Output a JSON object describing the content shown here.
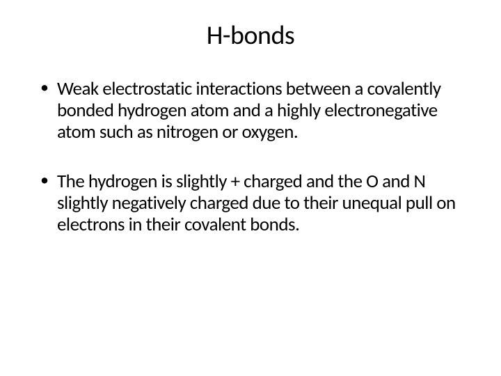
{
  "slide": {
    "title": "H-bonds",
    "bullets": [
      "Weak electrostatic interactions between a covalently bonded hydrogen atom and a highly electronegative atom such as nitrogen or oxygen.",
      "The hydrogen is slightly + charged and the O and N slightly negatively charged due to their unequal pull on electrons in their covalent bonds."
    ]
  },
  "style": {
    "background_color": "#ffffff",
    "text_color": "#000000",
    "title_fontsize": 38,
    "body_fontsize": 27,
    "font_family": "Calibri"
  }
}
